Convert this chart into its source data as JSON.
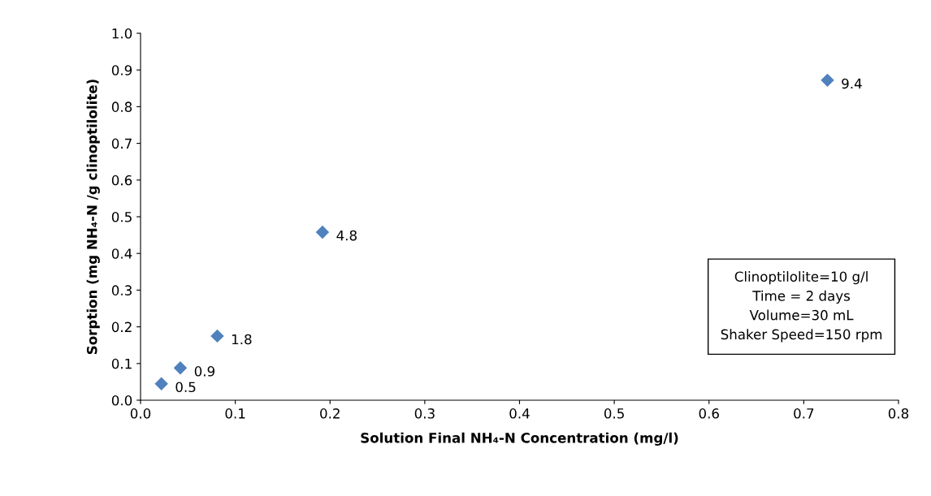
{
  "chart_data": {
    "type": "scatter",
    "xlabel": "Solution Final NH₄-N Concentration (mg/l)",
    "ylabel": "Sorption (mg NH₄-N /g clinoptilolite)",
    "x": [
      0.022,
      0.042,
      0.081,
      0.192,
      0.725
    ],
    "series": [
      {
        "color": "#4f81bd",
        "values": [
          0.045,
          0.088,
          0.175,
          0.458,
          0.872
        ]
      }
    ],
    "xlim": [
      0,
      0.8
    ],
    "xticks": [
      {
        "value": 0,
        "label": "0.0"
      },
      0.1,
      0.2,
      0.3,
      0.4,
      0.5,
      0.6,
      0.7,
      0.8
    ],
    "ylim": [
      0,
      1
    ],
    "yticks": [
      {
        "value": 0,
        "label": "0.0"
      },
      0.1,
      0.2,
      0.3,
      0.4,
      0.5,
      0.6,
      0.7,
      0.8,
      0.9,
      {
        "value": 1,
        "label": "1.0"
      }
    ],
    "grid": false,
    "legend": false,
    "marker": "diamond",
    "annotations": [
      {
        "text": "0.5",
        "x": 0.022,
        "y": 0.045
      },
      {
        "text": "0.9",
        "x": 0.042,
        "y": 0.088
      },
      {
        "text": "1.8",
        "x": 0.081,
        "y": 0.175
      },
      {
        "text": "4.8",
        "x": 0.192,
        "y": 0.458
      },
      {
        "text": "9.4",
        "x": 0.725,
        "y": 0.872
      },
      "Clinoptilolite=10 g/l\nTime = 2 days\nVolume=30 mL\nShaker Speed=150 rpm"
    ]
  }
}
